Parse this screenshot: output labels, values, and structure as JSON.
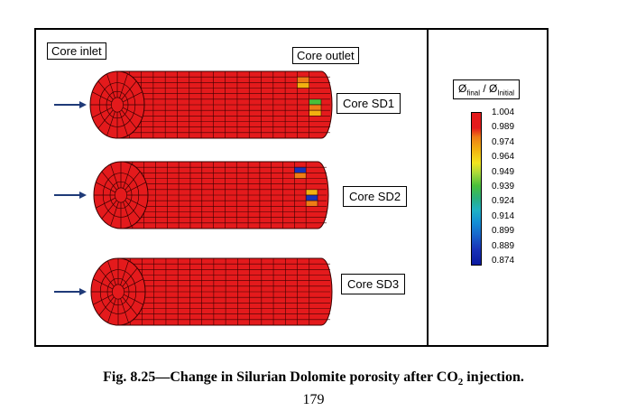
{
  "labels": {
    "core_inlet": "Core inlet",
    "core_outlet": "Core outlet"
  },
  "cores": [
    {
      "name": "Core SD1",
      "anomaly_colors": [
        "#ee7d16",
        "#f2b010",
        "#49c03a"
      ]
    },
    {
      "name": "Core SD2",
      "anomaly_colors": [
        "#1832b8",
        "#ee7d16",
        "#f2b010"
      ]
    },
    {
      "name": "Core SD3",
      "anomaly_colors": []
    }
  ],
  "legend": {
    "title_main": "Ø",
    "title_sub_final": "final",
    "title_sep": " / Ø",
    "title_sub_initial": "Initial",
    "ticks": [
      "1.004",
      "0.989",
      "0.974",
      "0.964",
      "0.949",
      "0.939",
      "0.924",
      "0.914",
      "0.899",
      "0.889",
      "0.874"
    ]
  },
  "caption": {
    "prefix": "Fig. 8.25—Change in Silurian Dolomite porosity after CO",
    "sub": "2",
    "suffix": " injection."
  },
  "page_number": "179",
  "colors": {
    "core_red": "#e41a1c",
    "grid_line": "#3a0000",
    "arrow": "#1f3a78"
  }
}
